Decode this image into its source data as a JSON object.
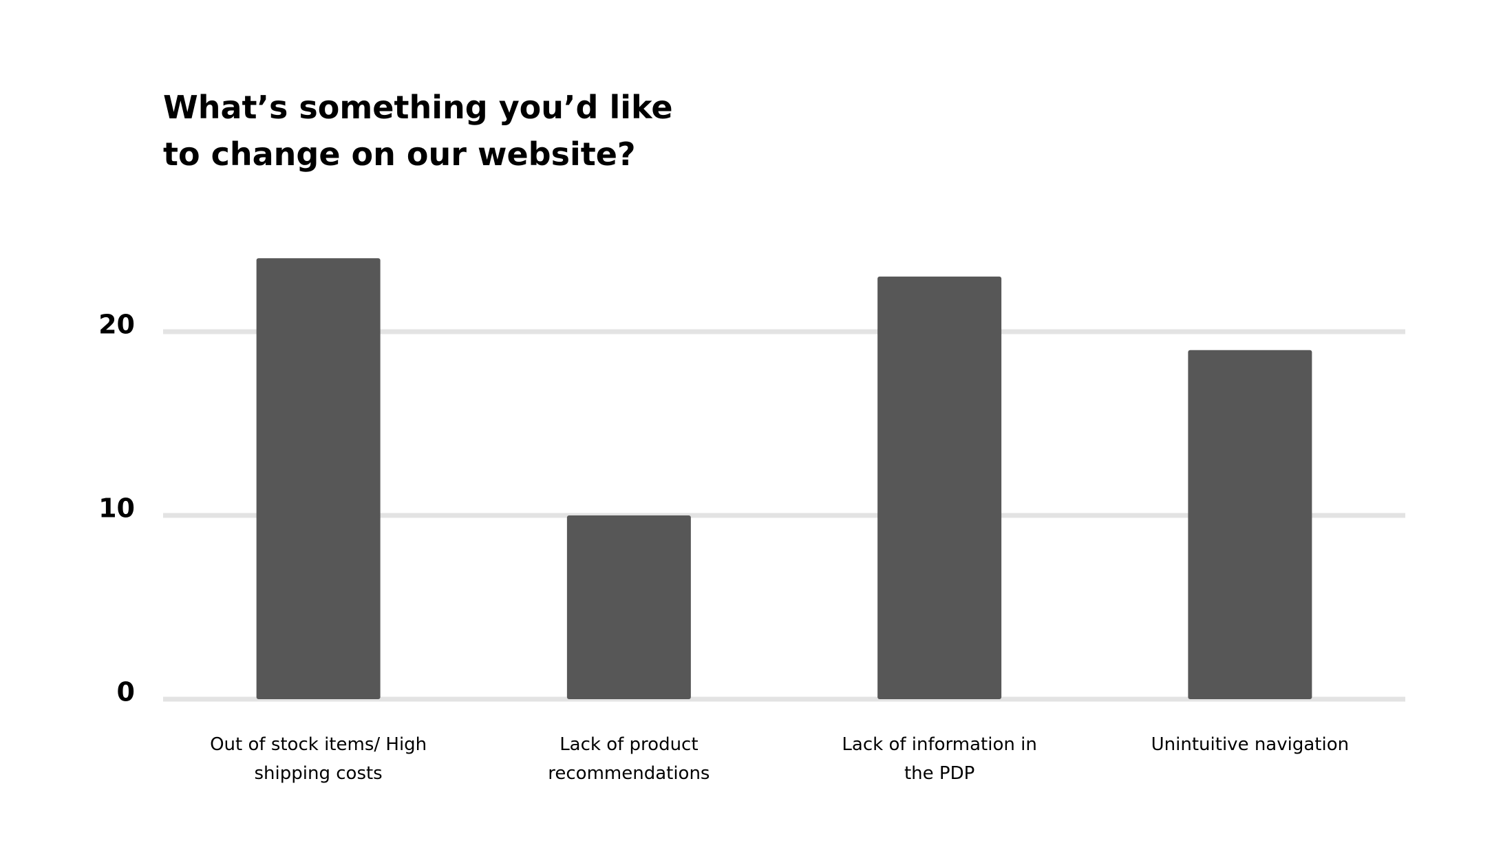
{
  "chart_data": {
    "type": "bar",
    "title": "What’s something you’d like to change on our website?",
    "categories": [
      "Out of stock items/ High shipping costs",
      "Lack of product recommendations",
      "Lack of information in the PDP",
      "Unintuitive navigation"
    ],
    "values": [
      24,
      10,
      23,
      19
    ],
    "color": "#575757",
    "ylim": [
      0,
      25
    ],
    "yticks": [
      0,
      10,
      20
    ],
    "grid": true
  }
}
